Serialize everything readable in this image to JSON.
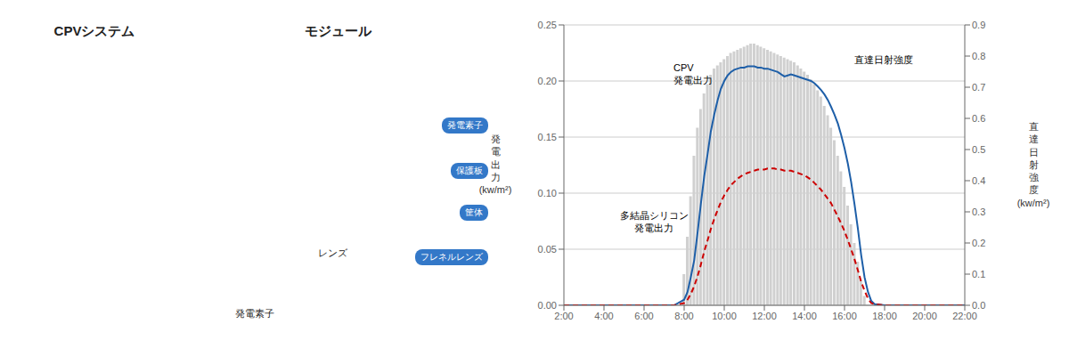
{
  "chart_data": {
    "type": "line",
    "grid": true,
    "xlim": [
      2,
      22
    ],
    "xticks": [
      {
        "value": 2,
        "label": "2:00"
      },
      {
        "value": 4,
        "label": "4:00"
      },
      {
        "value": 6,
        "label": "6:00"
      },
      {
        "value": 8,
        "label": "8:00"
      },
      {
        "value": 10,
        "label": "10:00"
      },
      {
        "value": 12,
        "label": "12:00"
      },
      {
        "value": 14,
        "label": "14:00"
      },
      {
        "value": 16,
        "label": "16:00"
      },
      {
        "value": 18,
        "label": "18:00"
      },
      {
        "value": 20,
        "label": "20:00"
      },
      {
        "value": 22,
        "label": "22:00"
      }
    ],
    "ylim": [
      0,
      0.25
    ],
    "yticks": [
      {
        "value": 0,
        "label": "0.00"
      },
      0.05,
      {
        "value": 0.1,
        "label": "0.10"
      },
      0.15,
      {
        "value": 0.2,
        "label": "0.20"
      },
      0.25
    ],
    "y2lim": [
      0,
      0.9
    ],
    "y2ticks": [
      {
        "value": 0,
        "label": "0.0"
      },
      0.1,
      0.2,
      0.3,
      0.4,
      0.5,
      0.6,
      0.7,
      0.8,
      0.9
    ],
    "ylabel": "発\n電\n出\n力\n(kw/m²)",
    "y2label": "直\n達\n日\n射\n強\n度\n(kw/m²)",
    "series": [
      {
        "type": "bar",
        "axis": "y2",
        "color": "#d0d0d0",
        "x": [
          8.0,
          8.17,
          8.33,
          8.5,
          8.67,
          8.83,
          9.0,
          9.17,
          9.33,
          9.5,
          9.67,
          9.83,
          10.0,
          10.17,
          10.33,
          10.5,
          10.67,
          10.83,
          11.0,
          11.17,
          11.33,
          11.5,
          11.67,
          11.83,
          12.0,
          12.17,
          12.33,
          12.5,
          12.67,
          12.83,
          13.0,
          13.17,
          13.33,
          13.5,
          13.67,
          13.83,
          14.0,
          14.17,
          14.33,
          14.5,
          14.67,
          14.83,
          15.0,
          15.17,
          15.33,
          15.5,
          15.67,
          15.83,
          16.0,
          16.17,
          16.33,
          16.5,
          16.67,
          16.83,
          17.0
        ],
        "values": [
          0.1,
          0.22,
          0.35,
          0.48,
          0.57,
          0.63,
          0.68,
          0.71,
          0.74,
          0.76,
          0.77,
          0.78,
          0.79,
          0.8,
          0.81,
          0.815,
          0.82,
          0.825,
          0.83,
          0.835,
          0.84,
          0.84,
          0.835,
          0.83,
          0.825,
          0.82,
          0.815,
          0.81,
          0.805,
          0.8,
          0.795,
          0.79,
          0.785,
          0.78,
          0.77,
          0.76,
          0.75,
          0.74,
          0.725,
          0.71,
          0.69,
          0.67,
          0.64,
          0.61,
          0.57,
          0.53,
          0.48,
          0.43,
          0.38,
          0.32,
          0.26,
          0.2,
          0.14,
          0.08,
          0.03
        ]
      },
      {
        "type": "line",
        "color": "#1e5fa8",
        "line_style": "solid",
        "x": [
          2,
          3,
          4,
          5,
          6,
          7,
          7.5,
          8.0,
          8.17,
          8.33,
          8.5,
          8.67,
          8.83,
          9.0,
          9.17,
          9.33,
          9.5,
          9.67,
          9.83,
          10.0,
          10.17,
          10.33,
          10.5,
          10.67,
          10.83,
          11.0,
          11.17,
          11.33,
          11.5,
          11.67,
          11.83,
          12.0,
          12.17,
          12.33,
          12.5,
          12.67,
          12.83,
          13.0,
          13.17,
          13.33,
          13.5,
          13.67,
          13.83,
          14.0,
          14.17,
          14.33,
          14.5,
          14.67,
          14.83,
          15.0,
          15.17,
          15.33,
          15.5,
          15.67,
          15.83,
          16.0,
          16.17,
          16.33,
          16.5,
          16.67,
          16.83,
          17.0,
          17.17,
          17.33,
          17.5,
          18.0,
          19,
          20,
          21,
          22
        ],
        "values": [
          0,
          0,
          0,
          0,
          0,
          0,
          0,
          0.005,
          0.012,
          0.025,
          0.04,
          0.065,
          0.09,
          0.115,
          0.135,
          0.155,
          0.17,
          0.183,
          0.193,
          0.2,
          0.205,
          0.208,
          0.21,
          0.211,
          0.212,
          0.212,
          0.213,
          0.213,
          0.213,
          0.212,
          0.212,
          0.211,
          0.211,
          0.21,
          0.209,
          0.208,
          0.206,
          0.204,
          0.205,
          0.206,
          0.205,
          0.204,
          0.203,
          0.202,
          0.201,
          0.2,
          0.198,
          0.195,
          0.192,
          0.188,
          0.183,
          0.177,
          0.17,
          0.162,
          0.152,
          0.14,
          0.126,
          0.11,
          0.09,
          0.068,
          0.045,
          0.025,
          0.012,
          0.004,
          0.001,
          0,
          0,
          0,
          0,
          0
        ]
      },
      {
        "type": "line",
        "color": "#cc0000",
        "line_style": "dashed",
        "x": [
          2,
          3,
          4,
          5,
          6,
          7,
          7.5,
          8.0,
          8.17,
          8.33,
          8.5,
          8.67,
          8.83,
          9.0,
          9.17,
          9.33,
          9.5,
          9.67,
          9.83,
          10.0,
          10.17,
          10.33,
          10.5,
          10.67,
          10.83,
          11.0,
          11.17,
          11.33,
          11.5,
          11.67,
          11.83,
          12.0,
          12.17,
          12.33,
          12.5,
          12.67,
          12.83,
          13.0,
          13.17,
          13.33,
          13.5,
          13.67,
          13.83,
          14.0,
          14.17,
          14.33,
          14.5,
          14.67,
          14.83,
          15.0,
          15.17,
          15.33,
          15.5,
          15.67,
          15.83,
          16.0,
          16.17,
          16.33,
          16.5,
          16.67,
          16.83,
          17.0,
          17.17,
          17.33,
          17.5,
          18.0,
          19,
          20,
          21,
          22
        ],
        "values": [
          0,
          0,
          0,
          0,
          0,
          0,
          0,
          0.002,
          0.005,
          0.01,
          0.017,
          0.026,
          0.036,
          0.048,
          0.058,
          0.068,
          0.077,
          0.085,
          0.092,
          0.098,
          0.103,
          0.107,
          0.11,
          0.113,
          0.115,
          0.117,
          0.118,
          0.119,
          0.12,
          0.121,
          0.121,
          0.121,
          0.122,
          0.122,
          0.122,
          0.121,
          0.121,
          0.12,
          0.12,
          0.12,
          0.119,
          0.118,
          0.117,
          0.116,
          0.114,
          0.112,
          0.109,
          0.106,
          0.103,
          0.099,
          0.095,
          0.091,
          0.085,
          0.079,
          0.073,
          0.066,
          0.058,
          0.05,
          0.041,
          0.031,
          0.021,
          0.013,
          0.006,
          0.002,
          0.001,
          0,
          0,
          0,
          0,
          0
        ]
      }
    ],
    "annotations": [
      "CPV\n発電出力",
      "多結晶シリコン\n発電出力",
      "直達日射強度",
      "CPVシステム",
      "モジュール",
      "発電素子",
      "保護板",
      "筐体",
      "フレネルレンズ",
      "レンズ",
      "発電素子"
    ]
  }
}
